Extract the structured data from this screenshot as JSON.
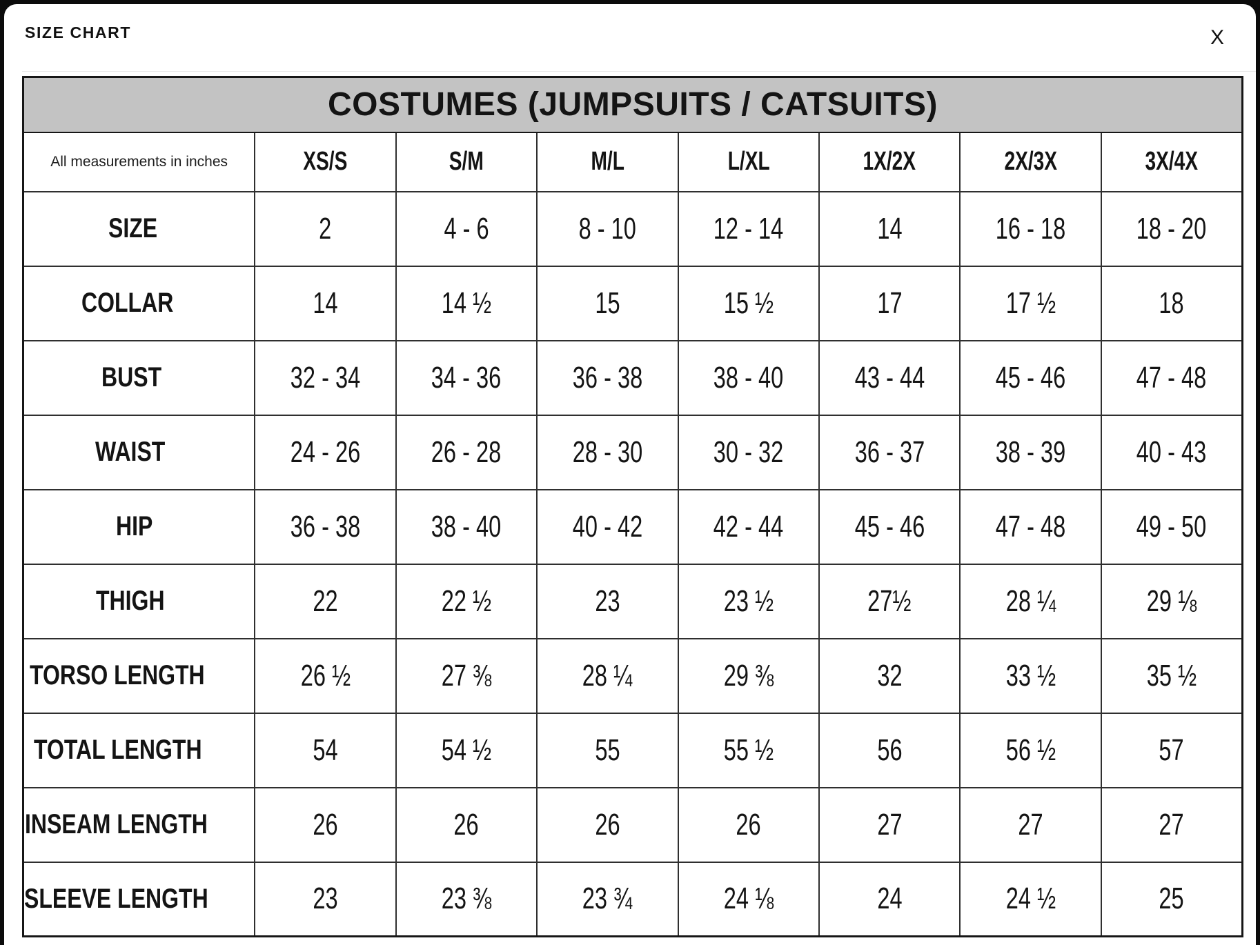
{
  "modal": {
    "title": "SIZE CHART",
    "close_icon": "X"
  },
  "table": {
    "title": "COSTUMES (JUMPSUITS / CATSUITS)",
    "corner_label": "All measurements in inches",
    "columns": [
      "XS/S",
      "S/M",
      "M/L",
      "L/XL",
      "1X/2X",
      "2X/3X",
      "3X/4X"
    ],
    "rows": [
      {
        "label": "SIZE",
        "values": [
          "2",
          "4 - 6",
          "8 - 10",
          "12 - 14",
          "14",
          "16 - 18",
          "18 - 20"
        ]
      },
      {
        "label": "COLLAR",
        "values": [
          "14",
          "14 ½",
          "15",
          "15 ½",
          "17",
          "17 ½",
          "18"
        ]
      },
      {
        "label": "BUST",
        "values": [
          "32 - 34",
          "34 - 36",
          "36 - 38",
          "38 - 40",
          "43 - 44",
          "45 - 46",
          "47 - 48"
        ]
      },
      {
        "label": "WAIST",
        "values": [
          "24 - 26",
          "26 - 28",
          "28 - 30",
          "30 - 32",
          "36 - 37",
          "38 - 39",
          "40 - 43"
        ]
      },
      {
        "label": "HIP",
        "values": [
          "36 - 38",
          "38 - 40",
          "40 - 42",
          "42 - 44",
          "45 - 46",
          "47 - 48",
          "49 - 50"
        ]
      },
      {
        "label": "THIGH",
        "values": [
          "22",
          "22 ½",
          "23",
          "23 ½",
          "27½",
          "28 ¼",
          "29 ⅛"
        ]
      },
      {
        "label": "TORSO LENGTH",
        "values": [
          "26 ½",
          "27 ⅜",
          "28 ¼",
          "29 ⅜",
          "32",
          "33 ½",
          "35 ½"
        ]
      },
      {
        "label": "TOTAL LENGTH",
        "values": [
          "54",
          "54 ½",
          "55",
          "55 ½",
          "56",
          "56 ½",
          "57"
        ]
      },
      {
        "label": "INSEAM LENGTH",
        "values": [
          "26",
          "26",
          "26",
          "26",
          "27",
          "27",
          "27"
        ]
      },
      {
        "label": "SLEEVE LENGTH",
        "values": [
          "23",
          "23 ⅜",
          "23 ¾",
          "24 ⅛",
          "24",
          "24 ½",
          "25"
        ]
      }
    ],
    "colors": {
      "header_band_bg": "#c3c3c3",
      "border": "#2f2f2f",
      "text": "#141414"
    }
  }
}
